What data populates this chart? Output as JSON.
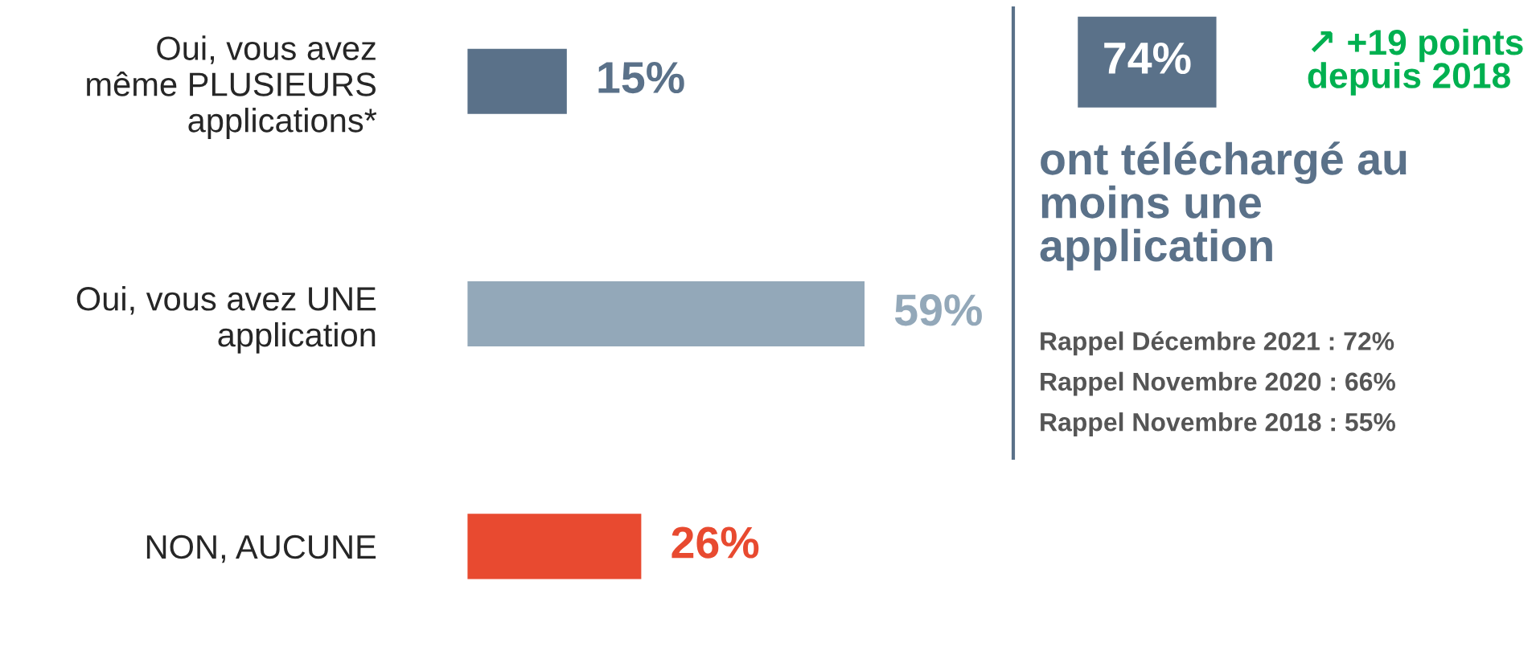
{
  "chart_data": [
    {
      "type": "bar",
      "orientation": "horizontal",
      "categories": [
        "Oui, vous avez\nmême PLUSIEURS\napplications*",
        "Oui, vous avez UNE\napplication",
        "NON, AUCUNE"
      ],
      "values": [
        15,
        59,
        26
      ],
      "colors": [
        "#5a7189",
        "#93a8b9",
        "#e84a30"
      ],
      "value_labels": [
        "15%",
        "59%",
        "26%"
      ]
    },
    {
      "type": "other",
      "annotations": [
        "74%",
        "↗ +19 points\ndepuis 2018",
        "ont téléchargé au\nmoins une\napplication",
        "Rappel Décembre 2021 : 72%",
        "Rappel Novembre 2020 : 66%",
        "Rappel Novembre 2018 : 55%"
      ]
    }
  ]
}
